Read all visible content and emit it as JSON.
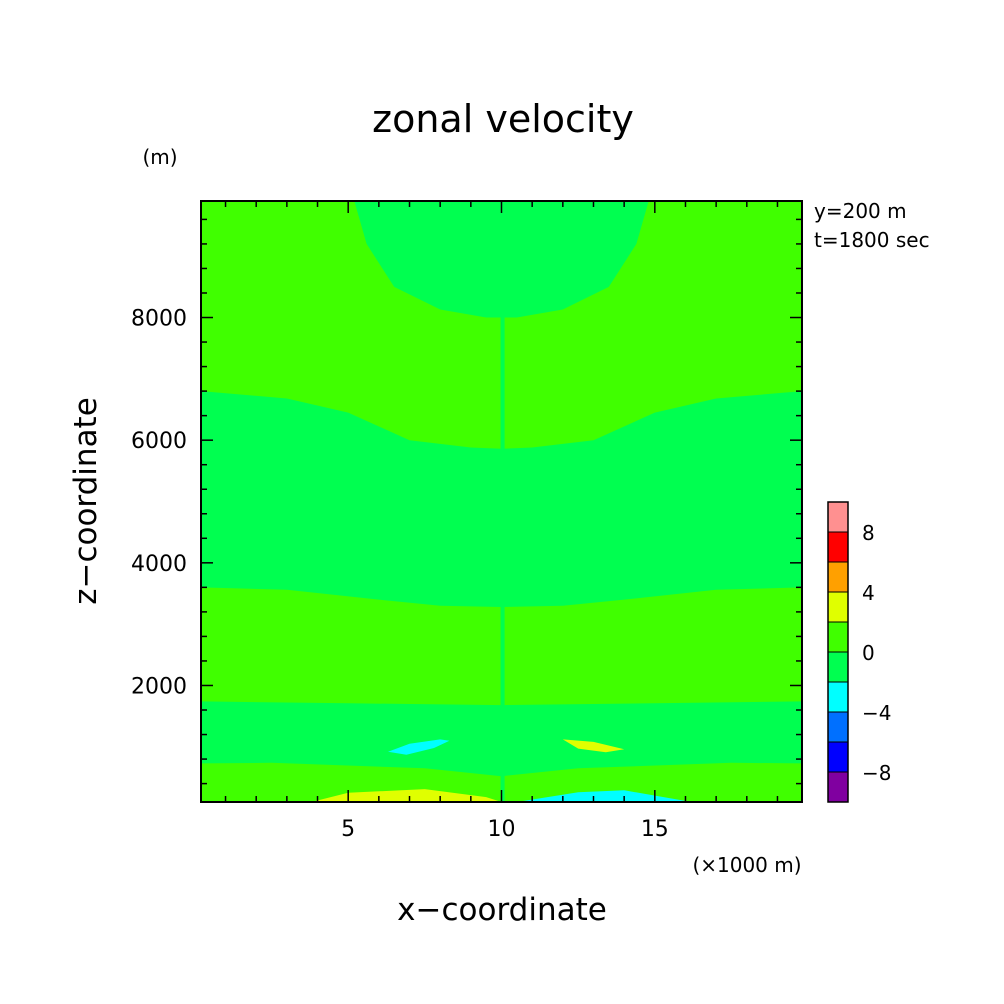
{
  "chart_data": {
    "type": "heatmap",
    "title": "zonal velocity",
    "xlabel": "x−coordinate",
    "ylabel": "z−coordinate",
    "x_unit": "(×1000 m)",
    "y_unit": "(m)",
    "info_lines": [
      "y=200 m",
      "t=1800 sec"
    ],
    "xlim": [
      0.2,
      19.8
    ],
    "ylim": [
      100,
      9900
    ],
    "x_ticks": [
      {
        "value": 5,
        "label": "5"
      },
      {
        "value": 10,
        "label": "10"
      },
      {
        "value": 15,
        "label": "15"
      }
    ],
    "y_ticks": [
      {
        "value": 2000,
        "label": "2000"
      },
      {
        "value": 4000,
        "label": "4000"
      },
      {
        "value": 6000,
        "label": "6000"
      },
      {
        "value": 8000,
        "label": "8000"
      }
    ],
    "colorbar": {
      "levels": [
        -10,
        -8,
        -6,
        -4,
        -2,
        0,
        2,
        4,
        6,
        8,
        10
      ],
      "colors": [
        "#8000a0",
        "#0000ff",
        "#0070ff",
        "#00ffff",
        "#00ff50",
        "#40ff00",
        "#e0ff00",
        "#ffa000",
        "#ff0000",
        "#ff9090"
      ],
      "tick_labels": [
        {
          "value": -8,
          "label": "−8"
        },
        {
          "value": -4,
          "label": "−4"
        },
        {
          "value": 0,
          "label": "0"
        },
        {
          "value": 4,
          "label": "4"
        },
        {
          "value": 8,
          "label": "8"
        }
      ]
    },
    "regions": [
      {
        "name": "upper-lobe",
        "level": "negative-small",
        "color": "#00ff50",
        "points": [
          [
            5.2,
            9900
          ],
          [
            5.6,
            9200
          ],
          [
            6.5,
            8500
          ],
          [
            8,
            8130
          ],
          [
            9.5,
            8000
          ],
          [
            10,
            8000
          ],
          [
            10.5,
            8000
          ],
          [
            12,
            8130
          ],
          [
            13.5,
            8500
          ],
          [
            14.4,
            9200
          ],
          [
            14.8,
            9900
          ]
        ]
      },
      {
        "name": "middle-band",
        "level": "negative-small",
        "color": "#00ff50",
        "points": [
          [
            0.2,
            6800
          ],
          [
            3,
            6680
          ],
          [
            5,
            6450
          ],
          [
            7,
            6000
          ],
          [
            9,
            5880
          ],
          [
            10,
            5860
          ],
          [
            11,
            5880
          ],
          [
            13,
            6000
          ],
          [
            15,
            6450
          ],
          [
            17,
            6680
          ],
          [
            19.8,
            6800
          ],
          [
            19.8,
            3600
          ],
          [
            17,
            3560
          ],
          [
            14,
            3400
          ],
          [
            12,
            3300
          ],
          [
            10,
            3280
          ],
          [
            8,
            3300
          ],
          [
            6,
            3400
          ],
          [
            3,
            3560
          ],
          [
            0.2,
            3600
          ]
        ]
      },
      {
        "name": "lower-band",
        "level": "negative-small",
        "color": "#00ff50",
        "points": [
          [
            0.2,
            1740
          ],
          [
            5,
            1710
          ],
          [
            10,
            1680
          ],
          [
            15,
            1710
          ],
          [
            19.8,
            1740
          ],
          [
            19.8,
            730
          ],
          [
            17.5,
            740
          ],
          [
            12.5,
            650
          ],
          [
            10,
            520
          ],
          [
            7.5,
            650
          ],
          [
            2.5,
            740
          ],
          [
            0.2,
            730
          ]
        ]
      },
      {
        "name": "bottom-positive",
        "level": "positive-small",
        "color": "#e0ff00",
        "points": [
          [
            3.8,
            100
          ],
          [
            5,
            250
          ],
          [
            7.5,
            310
          ],
          [
            9.5,
            180
          ],
          [
            10,
            100
          ]
        ]
      },
      {
        "name": "bottom-negative",
        "level": "negative-moderate",
        "color": "#00ffff",
        "points": [
          [
            10.5,
            100
          ],
          [
            12.5,
            260
          ],
          [
            14,
            290
          ],
          [
            16.2,
            100
          ]
        ]
      },
      {
        "name": "left-negative-blob",
        "level": "negative-moderate",
        "color": "#00ffff",
        "points": [
          [
            6.3,
            920
          ],
          [
            7,
            1050
          ],
          [
            8,
            1120
          ],
          [
            8.3,
            1100
          ],
          [
            7.8,
            980
          ],
          [
            6.9,
            870
          ]
        ]
      },
      {
        "name": "right-positive-blob",
        "level": "positive-small",
        "color": "#e0ff00",
        "points": [
          [
            12,
            1120
          ],
          [
            13,
            1080
          ],
          [
            14,
            960
          ],
          [
            13.4,
            910
          ],
          [
            12.5,
            970
          ]
        ]
      },
      {
        "name": "center-column",
        "level": "negative-small",
        "color": "#00ff50",
        "points": [
          [
            9.97,
            9900
          ],
          [
            10.1,
            9900
          ],
          [
            10.1,
            100
          ],
          [
            9.97,
            100
          ]
        ]
      }
    ],
    "background_color": "#40ff00"
  }
}
